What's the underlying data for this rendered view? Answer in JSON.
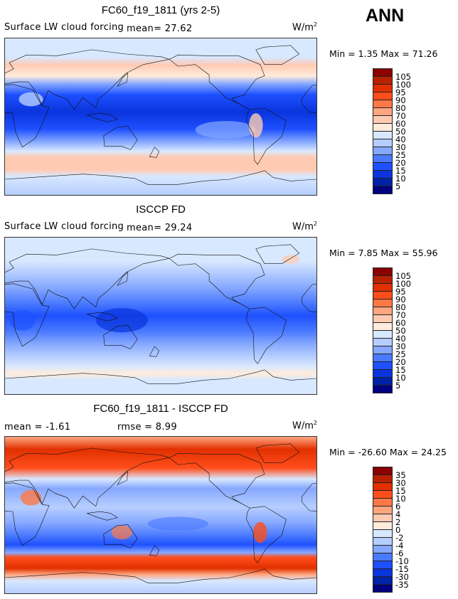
{
  "season": "ANN",
  "panels": [
    {
      "title": "FC60_f19_1811 (yrs 2-5)",
      "variable": "Surface LW cloud forcing",
      "mean_label": "mean=  27.62",
      "units": "W/m",
      "units_exp": "2",
      "minmax": "Min =    1.35  Max =   71.26",
      "colorbar": {
        "levels": [
          "105",
          "100",
          "95",
          "90",
          "80",
          "70",
          "60",
          "50",
          "40",
          "30",
          "25",
          "20",
          "15",
          "10",
          "5"
        ]
      }
    },
    {
      "title": "ISCCP FD",
      "variable": "Surface LW cloud forcing",
      "mean_label": "mean=  29.24",
      "units": "W/m",
      "units_exp": "2",
      "minmax": "Min =    7.85  Max =   55.96",
      "colorbar": {
        "levels": [
          "105",
          "100",
          "95",
          "90",
          "80",
          "70",
          "60",
          "50",
          "40",
          "30",
          "25",
          "20",
          "15",
          "10",
          "5"
        ]
      }
    },
    {
      "title": "FC60_f19_1811 - ISCCP FD",
      "mean_label": "mean =  -1.61",
      "rmse_label": "rmse =   8.99",
      "units": "W/m",
      "units_exp": "2",
      "minmax": "Min = -26.60  Max =   24.25",
      "colorbar": {
        "levels": [
          "35",
          "30",
          "15",
          "10",
          "6",
          "4",
          "2",
          "0",
          "-2",
          "-4",
          "-6",
          "-10",
          "-15",
          "-30",
          "-35"
        ]
      }
    }
  ],
  "palette": [
    "#8b0000",
    "#b82200",
    "#e23000",
    "#ff4e1c",
    "#ff7846",
    "#ffa680",
    "#ffcab2",
    "#ffecdc",
    "#d8e8ff",
    "#b6ceff",
    "#86a8ff",
    "#4a7aff",
    "#1e50ff",
    "#0a34dc",
    "#0022a6",
    "#000080"
  ]
}
